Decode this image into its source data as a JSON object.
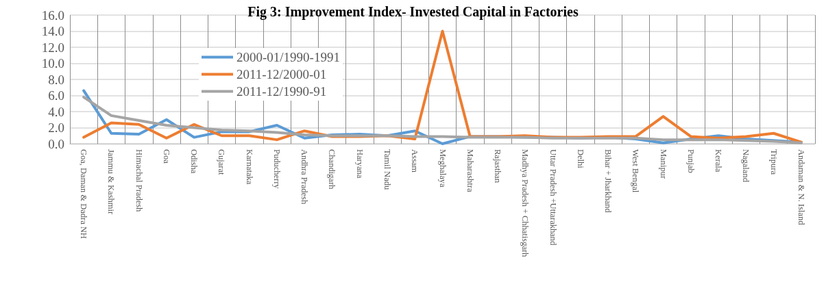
{
  "chart_data": {
    "type": "line",
    "title": "Fig 3: Improvement Index- Invested Capital in Factories",
    "categories": [
      "Goa, Daman & Dadra NH",
      "Jammu & Kashmir",
      "Himachal Pradesh",
      "Goa",
      "Odisha",
      "Gujarat",
      "Karnataka",
      "Puducherry",
      "Andhra Pradesh",
      "Chandigarh",
      "Haryana",
      "Tamil Nadu",
      "Assam",
      "Meghalaya",
      "Maharashtra",
      "Rajasthan",
      "Madhya Pradesh + Chhatisgarh",
      "Uttar Pradesh +Uttarakhand",
      "Delhi",
      "Bihar + Jharkhand",
      "West Bengal",
      "Manipur",
      "Punjab",
      "Kerala",
      "Nagaland",
      "Tripura",
      "Andaman & N. Island"
    ],
    "series": [
      {
        "name": "2000-01/1990-1991",
        "color": "#5b9bd5",
        "values": [
          6.6,
          1.3,
          1.2,
          3.0,
          0.8,
          1.5,
          1.5,
          2.3,
          0.7,
          1.1,
          1.2,
          1.0,
          1.6,
          0.0,
          0.9,
          0.9,
          0.8,
          0.8,
          0.7,
          0.8,
          0.6,
          0.1,
          0.6,
          1.0,
          0.6,
          0.4,
          0.2
        ]
      },
      {
        "name": "2011-12/2000-01",
        "color": "#ed7d31",
        "values": [
          0.8,
          2.6,
          2.4,
          0.7,
          2.4,
          1.0,
          1.0,
          0.5,
          1.6,
          0.9,
          0.9,
          1.0,
          0.6,
          14.0,
          0.9,
          0.9,
          1.0,
          0.8,
          0.8,
          0.9,
          0.9,
          3.4,
          0.9,
          0.7,
          0.9,
          1.3,
          0.2
        ]
      },
      {
        "name": "2011-12/1990-91",
        "color": "#a5a5a5",
        "values": [
          5.8,
          3.5,
          2.9,
          2.3,
          2.0,
          1.7,
          1.6,
          1.4,
          1.1,
          1.0,
          1.0,
          1.0,
          0.9,
          0.9,
          0.8,
          0.8,
          0.8,
          0.7,
          0.7,
          0.7,
          0.7,
          0.5,
          0.5,
          0.5,
          0.4,
          0.3,
          0.1
        ]
      }
    ],
    "ylim": [
      0,
      16
    ],
    "yticks": [
      {
        "value": 0,
        "label": "0.0"
      },
      {
        "value": 2,
        "label": "2.0"
      },
      {
        "value": 4,
        "label": "4.0"
      },
      {
        "value": 6,
        "label": "6.0"
      },
      {
        "value": 8,
        "label": "8.0"
      },
      {
        "value": 10,
        "label": "10.0"
      },
      {
        "value": 12,
        "label": "12.0"
      },
      {
        "value": 14,
        "label": "14.0"
      },
      {
        "value": 16,
        "label": "16.0"
      }
    ],
    "grid": true,
    "legend": "top left",
    "marker": "none",
    "line_style": "solid"
  }
}
